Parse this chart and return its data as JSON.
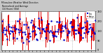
{
  "n_points": 120,
  "y_min": 0,
  "y_max": 360,
  "y_ticks": [
    0,
    90,
    180,
    270,
    360
  ],
  "bar_color": "#dd0000",
  "avg_color": "#0000cc",
  "fig_bg": "#c8c8c8",
  "plot_bg": "#ffffff",
  "grid_color": "#999999",
  "seed": 7,
  "title_left": "Milwaukee Weather Wind Direction\n Normalized and Average\n (24 Hours) (Old)",
  "legend_labels": [
    "Avg",
    "Range"
  ]
}
